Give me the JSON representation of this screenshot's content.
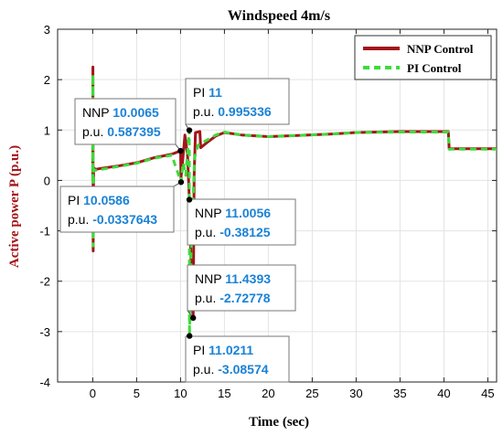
{
  "chart_data": {
    "type": "line",
    "title": "Windspeed 4m/s",
    "xlabel": "Time (sec)",
    "ylabel": "Active power P (p.u.)",
    "xlim": [
      -4,
      46
    ],
    "ylim": [
      -4,
      3
    ],
    "xticks": [
      0,
      5,
      10,
      15,
      20,
      25,
      30,
      35,
      40,
      45
    ],
    "yticks": [
      -4,
      -3,
      -2,
      -1,
      0,
      1,
      2,
      3
    ],
    "grid": true,
    "legend_position": "top-right",
    "series": [
      {
        "name": "NNP Control",
        "color": "#a3151a",
        "style": "solid",
        "points": [
          [
            0,
            0
          ],
          [
            0.02,
            2.25
          ],
          [
            0.05,
            -1.4
          ],
          [
            0.1,
            0.25
          ],
          [
            0.3,
            0.22
          ],
          [
            1,
            0.24
          ],
          [
            3,
            0.29
          ],
          [
            5,
            0.35
          ],
          [
            7,
            0.45
          ],
          [
            9,
            0.52
          ],
          [
            10.0065,
            0.587395
          ],
          [
            10.05,
            0.05
          ],
          [
            10.2,
            0.3
          ],
          [
            10.5,
            0.9
          ],
          [
            10.8,
            0.5
          ],
          [
            11.0056,
            -0.38125
          ],
          [
            11.3,
            -2.3
          ],
          [
            11.4393,
            -2.72778
          ],
          [
            11.55,
            0.1
          ],
          [
            11.7,
            0.95
          ],
          [
            12.2,
            0.97
          ],
          [
            12.3,
            0.65
          ],
          [
            13,
            0.75
          ],
          [
            14,
            0.88
          ],
          [
            15,
            0.95
          ],
          [
            17,
            0.9
          ],
          [
            20,
            0.87
          ],
          [
            23,
            0.89
          ],
          [
            27,
            0.92
          ],
          [
            30,
            0.95
          ],
          [
            35,
            0.97
          ],
          [
            39,
            0.97
          ],
          [
            40.5,
            0.97
          ],
          [
            40.6,
            0.63
          ],
          [
            46,
            0.63
          ]
        ]
      },
      {
        "name": "PI Control",
        "color": "#3ddc3a",
        "style": "dashed",
        "points": [
          [
            0,
            0
          ],
          [
            0.02,
            2.1
          ],
          [
            0.05,
            -1.3
          ],
          [
            0.1,
            0.22
          ],
          [
            0.3,
            0.2
          ],
          [
            1,
            0.22
          ],
          [
            3,
            0.28
          ],
          [
            5,
            0.34
          ],
          [
            7,
            0.44
          ],
          [
            9,
            0.5
          ],
          [
            10.0586,
            -0.0337643
          ],
          [
            10.3,
            0.35
          ],
          [
            10.6,
            0.1
          ],
          [
            11,
            0.995336
          ],
          [
            11.0211,
            -3.08574
          ],
          [
            11.2,
            -1.5
          ],
          [
            11.6,
            0.45
          ],
          [
            12,
            0.7
          ],
          [
            13,
            0.8
          ],
          [
            14,
            0.9
          ],
          [
            15,
            0.96
          ],
          [
            17,
            0.9
          ],
          [
            20,
            0.87
          ],
          [
            23,
            0.89
          ],
          [
            27,
            0.92
          ],
          [
            30,
            0.95
          ],
          [
            35,
            0.96
          ],
          [
            39,
            0.96
          ],
          [
            40.5,
            0.96
          ],
          [
            40.6,
            0.62
          ],
          [
            46,
            0.62
          ]
        ]
      }
    ],
    "datatips": [
      {
        "x": 10.0065,
        "y": 0.587395,
        "line1_label": "NNP",
        "line1_value": "10.0065",
        "line2_label": "p.u.",
        "line2_value": "0.587395"
      },
      {
        "x": 10.0586,
        "y": -0.0337643,
        "line1_label": "PI",
        "line1_value": "10.0586",
        "line2_label": "p.u.",
        "line2_value": "-0.0337643"
      },
      {
        "x": 11,
        "y": 0.995336,
        "line1_label": "PI",
        "line1_value": "11",
        "line2_label": "p.u.",
        "line2_value": "0.995336"
      },
      {
        "x": 11.0056,
        "y": -0.38125,
        "line1_label": "NNP",
        "line1_value": "11.0056",
        "line2_label": "p.u.",
        "line2_value": "-0.38125"
      },
      {
        "x": 11.4393,
        "y": -2.72778,
        "line1_label": "NNP",
        "line1_value": "11.4393",
        "line2_label": "p.u.",
        "line2_value": "-2.72778"
      },
      {
        "x": 11.0211,
        "y": -3.08574,
        "line1_label": "PI",
        "line1_value": "11.0211",
        "line2_label": "p.u.",
        "line2_value": "-3.08574"
      }
    ]
  }
}
